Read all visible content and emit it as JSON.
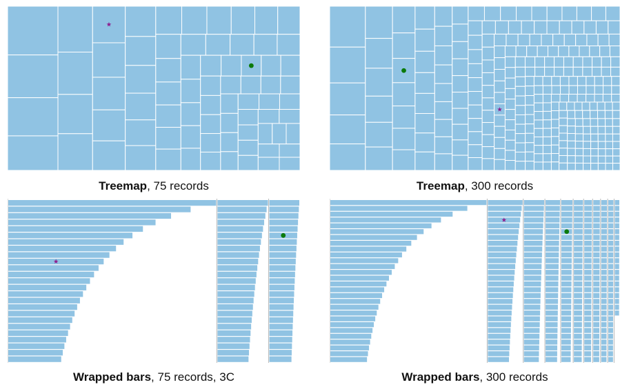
{
  "colors": {
    "fill": "#90c3e3",
    "line": "#ffffff",
    "axis": "#b8b8b8",
    "star": "#8e1e8e",
    "dot": "#0b7a0b"
  },
  "panels": [
    {
      "caption_bold": "Treemap",
      "caption_rest": ", 75 records"
    },
    {
      "caption_bold": "Treemap",
      "caption_rest": ", 300 records"
    },
    {
      "caption_bold": "Wrapped bars",
      "caption_rest": ", 75 records, 3C"
    },
    {
      "caption_bold": "Wrapped bars",
      "caption_rest": ", 300 records"
    }
  ],
  "chart_data": [
    {
      "type": "treemap",
      "records": 75,
      "value_profile": "descending",
      "markers": [
        {
          "shape": "star",
          "record_rank": 8
        },
        {
          "shape": "dot",
          "record_rank": 43
        }
      ]
    },
    {
      "type": "treemap",
      "records": 300,
      "value_profile": "descending",
      "markers": [
        {
          "shape": "star",
          "record_rank": 104
        },
        {
          "shape": "dot",
          "record_rank": 13
        }
      ]
    },
    {
      "type": "bar",
      "layout": "wrapped",
      "records": 75,
      "columns": 3,
      "value_profile": "descending",
      "markers": [
        {
          "shape": "star",
          "record_rank": 9
        },
        {
          "shape": "dot",
          "record_rank": 55
        }
      ]
    },
    {
      "type": "bar",
      "layout": "wrapped",
      "records": 300,
      "columns": 11,
      "value_profile": "descending",
      "markers": [
        {
          "shape": "star",
          "record_rank": 31
        },
        {
          "shape": "dot",
          "record_rank": 117
        }
      ]
    }
  ]
}
